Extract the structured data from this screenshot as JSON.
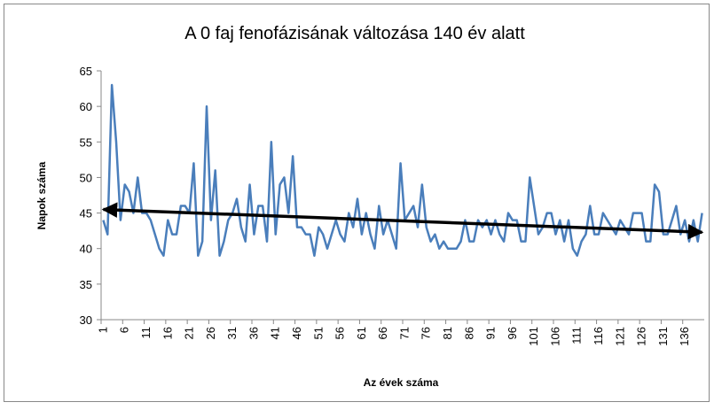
{
  "chart_data": {
    "type": "line",
    "title": "A 0 faj fenofázisának változása 140 év alatt",
    "x_label": "Az évek száma",
    "y_label": "Napok száma",
    "categories": [
      1,
      null,
      null,
      null,
      null,
      6,
      null,
      null,
      null,
      null,
      11,
      null,
      null,
      null,
      null,
      16,
      null,
      null,
      null,
      null,
      21,
      null,
      null,
      null,
      null,
      26,
      null,
      null,
      null,
      null,
      31,
      null,
      null,
      null,
      null,
      36,
      null,
      null,
      null,
      null,
      41,
      null,
      null,
      null,
      null,
      46,
      null,
      null,
      null,
      null,
      51,
      null,
      null,
      null,
      null,
      56,
      null,
      null,
      null,
      null,
      61,
      null,
      null,
      null,
      null,
      66,
      null,
      null,
      null,
      null,
      71,
      null,
      null,
      null,
      null,
      76,
      null,
      null,
      null,
      null,
      81,
      null,
      null,
      null,
      null,
      86,
      null,
      null,
      null,
      null,
      91,
      null,
      null,
      null,
      null,
      96,
      null,
      null,
      null,
      null,
      101,
      null,
      null,
      null,
      null,
      106,
      null,
      null,
      null,
      null,
      111,
      null,
      null,
      null,
      null,
      116,
      null,
      null,
      null,
      null,
      121,
      null,
      null,
      null,
      null,
      126,
      null,
      null,
      null,
      null,
      131,
      null,
      null,
      null,
      null,
      136,
      null,
      null,
      null,
      null
    ],
    "series": [
      {
        "color": "#4a7ebb",
        "values": [
          44,
          42,
          63,
          55,
          44,
          49,
          48,
          45,
          50,
          45,
          45,
          44,
          42,
          40,
          39,
          44,
          42,
          42,
          46,
          46,
          45,
          52,
          39,
          41,
          60,
          44,
          51,
          39,
          41,
          44,
          45,
          47,
          43,
          41,
          49,
          42,
          46,
          46,
          41,
          55,
          42,
          49,
          50,
          45,
          53,
          43,
          43,
          42,
          42,
          39,
          43,
          42,
          40,
          42,
          44,
          42,
          41,
          45,
          43,
          47,
          42,
          45,
          42,
          40,
          46,
          42,
          44,
          42,
          40,
          52,
          44,
          45,
          46,
          43,
          49,
          43,
          41,
          42,
          40,
          41,
          40,
          40,
          40,
          41,
          44,
          41,
          41,
          44,
          43,
          44,
          42,
          44,
          42,
          41,
          45,
          44,
          44,
          41,
          41,
          50,
          46,
          42,
          43,
          45,
          45,
          42,
          44,
          41,
          44,
          40,
          39,
          41,
          42,
          46,
          42,
          42,
          45,
          44,
          43,
          42,
          44,
          43,
          42,
          45,
          45,
          45,
          41,
          41,
          49,
          48,
          42,
          42,
          44,
          46,
          42,
          44,
          41,
          44,
          41,
          45
        ]
      }
    ],
    "trend_line": {
      "values": [
        45.5,
        42.3
      ],
      "color": "#000000"
    },
    "ylim": [
      30,
      65
    ],
    "yticks": [
      30,
      35,
      40,
      45,
      50,
      55,
      60,
      65
    ]
  }
}
